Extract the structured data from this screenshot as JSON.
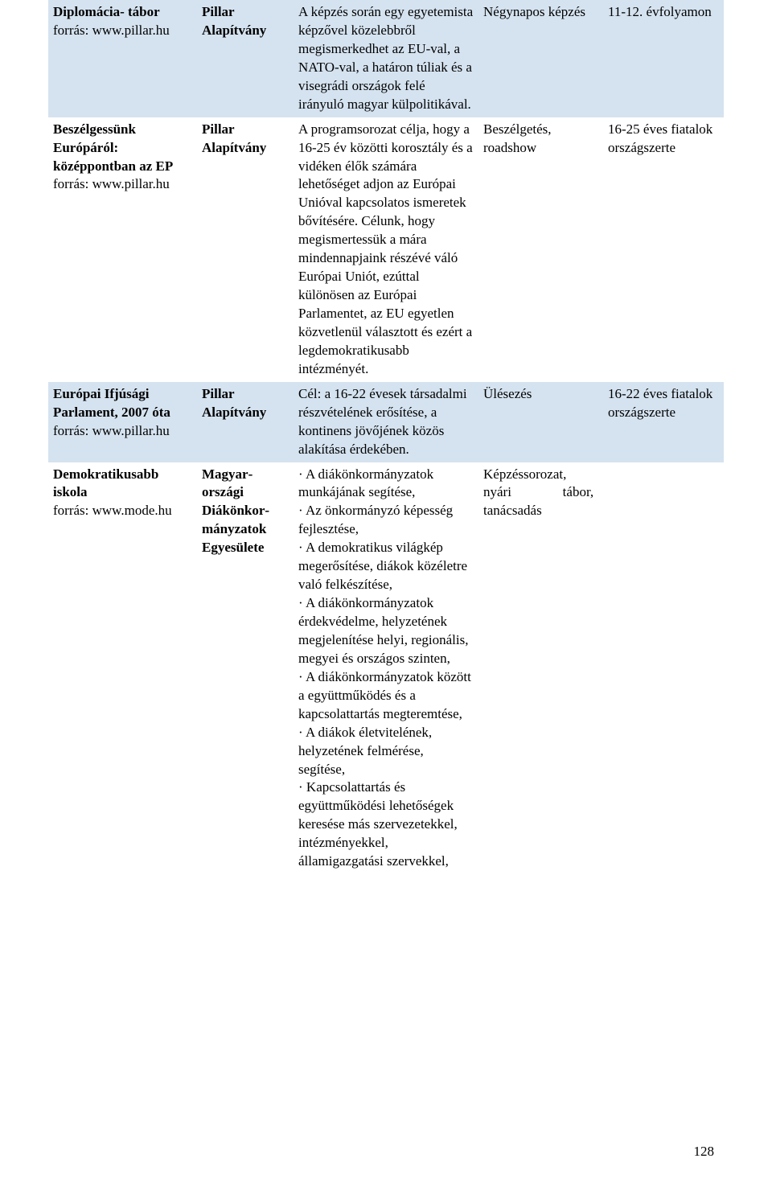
{
  "rows": [
    {
      "bg": "blue",
      "col1_bold": "Diplomácia- tábor",
      "col1_sub": "forrás: www.pillar.hu",
      "col2": "Pillar Alapítvány",
      "col3": "A képzés során egy egyetemista képzővel közelebbről megismerkedhet az EU-val, a NATO-val, a határon túliak és a visegrádi országok felé irányuló magyar külpolitikával.",
      "col4": "Négynapos képzés",
      "col5": "11-12. évfolyamon"
    },
    {
      "bg": "white",
      "col1_bold": "Beszélgessünk Európáról: középpontban az EP",
      "col1_sub": "forrás: www.pillar.hu",
      "col2": "Pillar Alapítvány",
      "col3": "A programsorozat célja, hogy a 16-25 év közötti korosztály és a vidéken élők számára lehetőséget adjon az Európai Unióval kapcsolatos ismeretek bővítésére. Célunk, hogy megismertessük a mára mindennapjaink részévé váló Európai Uniót, ezúttal különösen az Európai Parlamentet, az EU egyetlen közvetlenül választott és ezért a legdemokratikusabb intézményét.",
      "col4": "Beszélgetés, roadshow",
      "col5": "16-25 éves fiatalok országszerte"
    },
    {
      "bg": "blue",
      "col1_bold": "Európai Ifjúsági Parlament, 2007 óta",
      "col1_sub": "forrás: www.pillar.hu",
      "col2": "Pillar Alapítvány",
      "col3": "Cél: a 16-22 évesek társadalmi részvételének erősítése, a kontinens jövőjének közös alakítása érdekében.",
      "col4": "Ülésezés",
      "col5": "16-22 éves fiatalok országszerte"
    },
    {
      "bg": "white",
      "col1_bold": "Demokratikusabb iskola",
      "col1_sub": "forrás: www.mode.hu",
      "col2": "Magyar­országi Diákönkor­mányzatok Egyesülete",
      "col3": "· A diákönkormányzatok munkájának segítése,\n· Az önkormányzó képesség fejlesztése,\n· A demokratikus világkép megerősítése, diákok közéletre való felkészítése,\n· A diákönkormányzatok érdekvédelme, helyzetének megjelenítése helyi, regionális, megyei és országos szinten,\n· A diákönkormányzatok között a együttműködés és a kapcsolattartás megteremtése,\n· A diákok életvitelének, helyzetének felmérése, segítése,\n· Kapcsolattartás és együttműködési lehetőségek keresése más szervezetekkel, intézményekkel, államigazgatási szervekkel,",
      "col4_html": "Képzéssorozat,<br>nyári&nbsp;&nbsp;&nbsp;&nbsp;&nbsp;&nbsp;&nbsp;&nbsp;&nbsp;&nbsp;&nbsp;&nbsp;&nbsp;&nbsp;&nbsp;tábor,<br>tanácsadás",
      "col5": ""
    }
  ],
  "page_number": "128"
}
